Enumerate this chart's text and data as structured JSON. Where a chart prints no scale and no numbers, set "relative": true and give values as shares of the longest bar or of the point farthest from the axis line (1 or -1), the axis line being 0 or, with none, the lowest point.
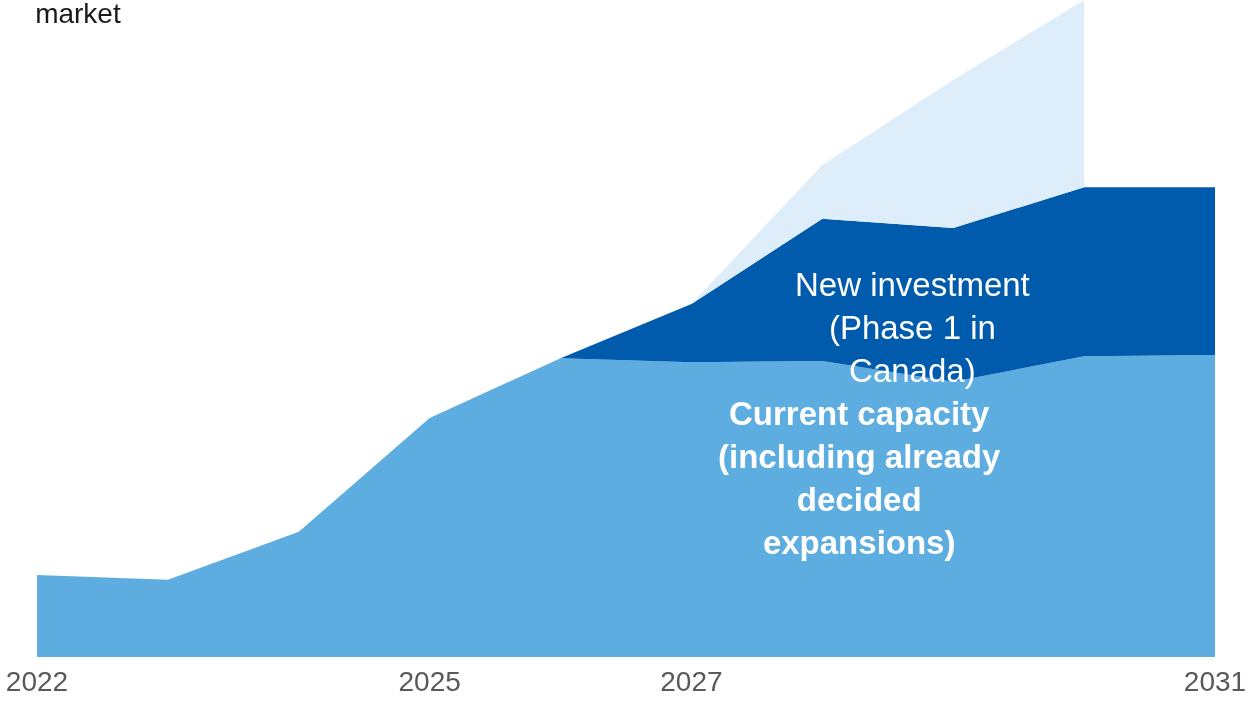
{
  "chart_data": {
    "type": "area",
    "title": "market",
    "relative": true,
    "stacked": true,
    "x": [
      2022,
      2023,
      2024,
      2025,
      2026,
      2027,
      2028,
      2029,
      2030,
      2031
    ],
    "xlim": [
      2022,
      2031
    ],
    "xticks": [
      2022,
      2025,
      2027,
      2031
    ],
    "legend": false,
    "series": [
      {
        "name": "Current capacity (including already decided expansions)",
        "color": "#5dade0",
        "values": [
          0.122,
          0.115,
          0.188,
          0.362,
          0.453,
          0.447,
          0.449,
          0.417,
          0.456,
          0.458
        ]
      },
      {
        "name": "New investment (Phase 1 in Canada)",
        "color": "#005bac",
        "values": [
          null,
          null,
          null,
          null,
          0,
          0.089,
          0.217,
          0.235,
          0.258,
          0.256
        ]
      },
      {
        "color": "#ddeefa",
        "values": [
          null,
          null,
          null,
          null,
          null,
          0,
          0.082,
          0.226,
          0.286,
          null
        ]
      }
    ]
  }
}
